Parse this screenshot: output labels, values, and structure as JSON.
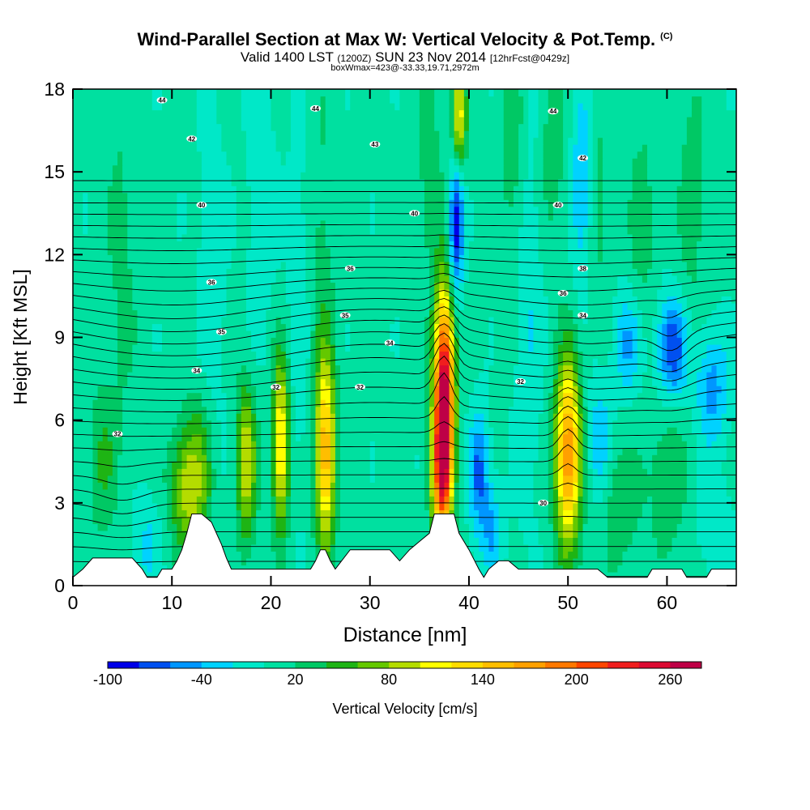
{
  "header": {
    "title": "Wind-Parallel Section at Max W: Vertical Velocity & Pot.Temp.",
    "title_mark": "(C)",
    "subtitle_valid": "Valid 1400 LST",
    "subtitle_utc": "(1200Z)",
    "subtitle_date": "SUN 23 Nov 2014",
    "subtitle_fcst": "[12hrFcst@0429z]",
    "box_info": "boxWmax=423@-33.33,19.71,2972m"
  },
  "chart_data": {
    "type": "heatmap",
    "xlabel": "Distance [nm]",
    "ylabel": "Height [Kft MSL]",
    "xlim": [
      0,
      67
    ],
    "ylim": [
      0,
      18
    ],
    "xticks": [
      0,
      10,
      20,
      30,
      40,
      50,
      60
    ],
    "yticks": [
      0,
      3,
      6,
      9,
      12,
      15,
      18
    ],
    "colorbar": {
      "label": "Vertical Velocity [cm/s]",
      "tick_labels": [
        "-100",
        "-40",
        "20",
        "80",
        "140",
        "200",
        "260"
      ],
      "tick_values": [
        -100,
        -40,
        20,
        80,
        140,
        200,
        260
      ],
      "bins": [
        -100,
        -80,
        -60,
        -40,
        -20,
        0,
        20,
        40,
        60,
        80,
        100,
        120,
        140,
        160,
        180,
        200,
        220,
        240,
        260,
        280
      ],
      "colors": [
        "#0000e8",
        "#0050f0",
        "#0096ff",
        "#00d2ff",
        "#00e8c8",
        "#00e0a0",
        "#00c864",
        "#1eb414",
        "#64c800",
        "#b4dc00",
        "#ffff00",
        "#ffdc00",
        "#ffbe00",
        "#ffa000",
        "#ff7800",
        "#ff4600",
        "#f01e1e",
        "#dc0a32",
        "#be0046"
      ]
    },
    "background_w": 5,
    "updrafts": [
      {
        "x": 3.0,
        "z": 4.5,
        "w": 35,
        "sx": 1.0,
        "sz": 2.0
      },
      {
        "x": 11.5,
        "z": 3.5,
        "w": 80,
        "sx": 1.2,
        "sz": 1.6
      },
      {
        "x": 13.0,
        "z": 4.5,
        "w": 40,
        "sx": 1.0,
        "sz": 2.0
      },
      {
        "x": 17.5,
        "z": 4.5,
        "w": 95,
        "sx": 0.7,
        "sz": 2.0
      },
      {
        "x": 21.0,
        "z": 5.2,
        "w": 125,
        "sx": 0.6,
        "sz": 2.2
      },
      {
        "x": 25.5,
        "z": 4.8,
        "w": 145,
        "sx": 0.7,
        "sz": 2.4
      },
      {
        "x": 37.5,
        "z": 7.0,
        "w": 265,
        "sx": 0.7,
        "sz": 2.6
      },
      {
        "x": 37.2,
        "z": 4.0,
        "w": 150,
        "sx": 0.7,
        "sz": 1.8
      },
      {
        "x": 39.0,
        "z": 17.0,
        "w": 110,
        "sx": 0.5,
        "sz": 1.3
      },
      {
        "x": 50.0,
        "z": 4.8,
        "w": 175,
        "sx": 0.9,
        "sz": 2.4
      },
      {
        "x": 55.0,
        "z": 3.0,
        "w": 35,
        "sx": 1.5,
        "sz": 1.6
      },
      {
        "x": 60.0,
        "z": 4.0,
        "w": 30,
        "sx": 1.4,
        "sz": 2.2
      },
      {
        "x": 25.0,
        "z": 11.0,
        "w": 25,
        "sx": 1.0,
        "sz": 5.0
      },
      {
        "x": 36.0,
        "z": 15.0,
        "w": 25,
        "sx": 1.0,
        "sz": 3.0
      },
      {
        "x": 44.5,
        "z": 15.5,
        "w": 30,
        "sx": 0.9,
        "sz": 3.0
      },
      {
        "x": 48.5,
        "z": 16.0,
        "w": 30,
        "sx": 0.9,
        "sz": 2.5
      },
      {
        "x": 53.0,
        "z": 14.0,
        "w": 25,
        "sx": 0.9,
        "sz": 3.0
      },
      {
        "x": 57.5,
        "z": 13.0,
        "w": 25,
        "sx": 1.0,
        "sz": 3.0
      },
      {
        "x": 62.5,
        "z": 14.0,
        "w": 25,
        "sx": 1.0,
        "sz": 4.0
      },
      {
        "x": 5.0,
        "z": 12.0,
        "w": 20,
        "sx": 1.2,
        "sz": 5.0
      }
    ],
    "downdrafts": [
      {
        "x": 7.5,
        "z": 1.5,
        "w": -30,
        "sx": 1.0,
        "sz": 1.2
      },
      {
        "x": 14.0,
        "z": 10.0,
        "w": -20,
        "sx": 1.0,
        "sz": 5.0
      },
      {
        "x": 19.0,
        "z": 14.0,
        "w": -20,
        "sx": 1.0,
        "sz": 4.0
      },
      {
        "x": 23.0,
        "z": 10.0,
        "w": -20,
        "sx": 1.0,
        "sz": 5.0
      },
      {
        "x": 38.7,
        "z": 13.0,
        "w": -100,
        "sx": 0.5,
        "sz": 1.8
      },
      {
        "x": 41.0,
        "z": 4.2,
        "w": -70,
        "sx": 0.7,
        "sz": 1.5
      },
      {
        "x": 42.3,
        "z": 2.0,
        "w": -45,
        "sx": 0.8,
        "sz": 1.2
      },
      {
        "x": 46.0,
        "z": 10.0,
        "w": -25,
        "sx": 1.0,
        "sz": 5.0
      },
      {
        "x": 51.5,
        "z": 14.5,
        "w": -50,
        "sx": 0.8,
        "sz": 2.5
      },
      {
        "x": 53.2,
        "z": 5.0,
        "w": -50,
        "sx": 0.8,
        "sz": 1.6
      },
      {
        "x": 56.0,
        "z": 8.8,
        "w": -50,
        "sx": 1.0,
        "sz": 1.3
      },
      {
        "x": 60.5,
        "z": 8.6,
        "w": -85,
        "sx": 1.1,
        "sz": 1.3
      },
      {
        "x": 64.5,
        "z": 7.2,
        "w": -55,
        "sx": 1.2,
        "sz": 1.5
      },
      {
        "x": 65.0,
        "z": 2.0,
        "w": -25,
        "sx": 1.2,
        "sz": 1.2
      }
    ],
    "terrain": [
      [
        0,
        0.3
      ],
      [
        1,
        0.6
      ],
      [
        2,
        1.0
      ],
      [
        4,
        1.0
      ],
      [
        6,
        1.0
      ],
      [
        7,
        0.6
      ],
      [
        7.5,
        0.3
      ],
      [
        8.5,
        0.3
      ],
      [
        9,
        0.6
      ],
      [
        10,
        0.6
      ],
      [
        10.5,
        0.9
      ],
      [
        11,
        1.3
      ],
      [
        11.5,
        1.9
      ],
      [
        12,
        2.6
      ],
      [
        13,
        2.6
      ],
      [
        14,
        2.3
      ],
      [
        14.5,
        1.9
      ],
      [
        15,
        1.5
      ],
      [
        15.5,
        1.0
      ],
      [
        16,
        0.6
      ],
      [
        20,
        0.6
      ],
      [
        24,
        0.6
      ],
      [
        24.5,
        0.9
      ],
      [
        25,
        1.3
      ],
      [
        25.5,
        1.3
      ],
      [
        26,
        0.9
      ],
      [
        26.5,
        0.6
      ],
      [
        28,
        1.3
      ],
      [
        32,
        1.3
      ],
      [
        33,
        0.9
      ],
      [
        34,
        1.3
      ],
      [
        35,
        1.6
      ],
      [
        36,
        1.9
      ],
      [
        36.5,
        2.6
      ],
      [
        38.5,
        2.6
      ],
      [
        39,
        1.9
      ],
      [
        40,
        1.3
      ],
      [
        41,
        0.6
      ],
      [
        41.5,
        0.3
      ],
      [
        42,
        0.6
      ],
      [
        43,
        0.9
      ],
      [
        44,
        0.9
      ],
      [
        45,
        0.6
      ],
      [
        50,
        0.6
      ],
      [
        53,
        0.6
      ],
      [
        54,
        0.3
      ],
      [
        58,
        0.3
      ],
      [
        58.5,
        0.6
      ],
      [
        60,
        0.6
      ],
      [
        61.5,
        0.6
      ],
      [
        62,
        0.3
      ],
      [
        64,
        0.3
      ],
      [
        64.5,
        0.6
      ],
      [
        67,
        0.6
      ]
    ],
    "theta_contours": {
      "base_values": [
        29,
        29.5,
        30,
        30.5,
        31,
        31.5,
        32,
        32.5,
        33,
        33.5,
        34,
        34.5,
        35,
        35.5,
        36,
        36.5,
        37,
        37.5,
        38,
        38.5,
        39,
        39.5,
        40,
        40.5,
        41,
        41.5,
        42,
        42.5,
        43,
        43.5,
        44,
        44.5,
        45
      ],
      "labels": [
        {
          "text": "30",
          "x": 47.5,
          "z": 3.0
        },
        {
          "text": "32",
          "x": 4.5,
          "z": 5.5
        },
        {
          "text": "32",
          "x": 20.5,
          "z": 7.2
        },
        {
          "text": "32",
          "x": 29.0,
          "z": 7.2
        },
        {
          "text": "32",
          "x": 45.2,
          "z": 7.4
        },
        {
          "text": "34",
          "x": 12.5,
          "z": 7.8
        },
        {
          "text": "34",
          "x": 32.0,
          "z": 8.8
        },
        {
          "text": "34",
          "x": 51.5,
          "z": 9.8
        },
        {
          "text": "35",
          "x": 15.0,
          "z": 9.2
        },
        {
          "text": "35",
          "x": 27.5,
          "z": 9.8
        },
        {
          "text": "36",
          "x": 14.0,
          "z": 11.0
        },
        {
          "text": "36",
          "x": 28.0,
          "z": 11.5
        },
        {
          "text": "36",
          "x": 49.5,
          "z": 10.6
        },
        {
          "text": "38",
          "x": 51.5,
          "z": 11.5
        },
        {
          "text": "40",
          "x": 13.0,
          "z": 13.8
        },
        {
          "text": "40",
          "x": 34.5,
          "z": 13.5
        },
        {
          "text": "40",
          "x": 49.0,
          "z": 13.8
        },
        {
          "text": "42",
          "x": 12.0,
          "z": 16.2
        },
        {
          "text": "42",
          "x": 51.5,
          "z": 15.5
        },
        {
          "text": "43",
          "x": 30.5,
          "z": 16.0
        },
        {
          "text": "44",
          "x": 9.0,
          "z": 17.6
        },
        {
          "text": "44",
          "x": 24.5,
          "z": 17.3
        },
        {
          "text": "44",
          "x": 48.5,
          "z": 17.2
        }
      ]
    }
  }
}
